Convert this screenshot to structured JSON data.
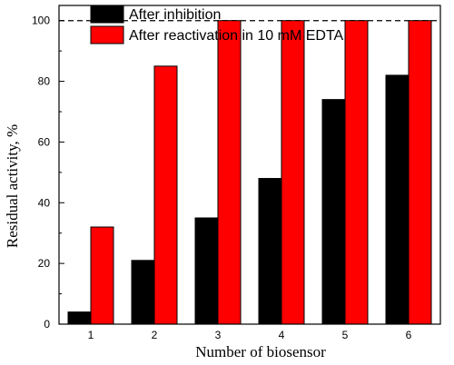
{
  "chart_data": {
    "type": "bar",
    "categories": [
      "1",
      "2",
      "3",
      "4",
      "5",
      "6"
    ],
    "series": [
      {
        "name": "After inhibition",
        "values": [
          4,
          21,
          35,
          48,
          74,
          82
        ],
        "color": "#000000"
      },
      {
        "name": "After reactivation in 10 mM EDTA",
        "values": [
          32,
          85,
          100,
          100,
          100,
          100
        ],
        "color": "#ff0000"
      }
    ],
    "xlabel": "Number of biosensor",
    "ylabel": "Residual activity, %",
    "ylim": [
      0,
      105
    ],
    "yticks": [
      "0",
      "20",
      "40",
      "60",
      "80",
      "100"
    ],
    "reference_line": {
      "y": 100,
      "style": "dashed"
    },
    "legend": "top-left",
    "grid": false
  }
}
